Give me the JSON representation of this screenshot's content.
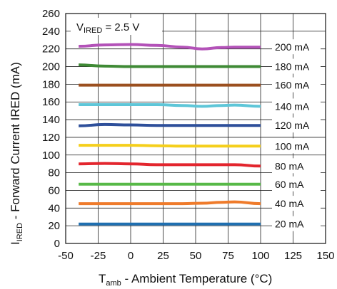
{
  "chart_data": {
    "type": "line",
    "xlabel_main": "T",
    "xlabel_sub": "amb",
    "xlabel_rest": " - Ambient Temperature (°C)",
    "ylabel_main": "I",
    "ylabel_sub": "IRED",
    "ylabel_rest": " - Forward Current IRED (mA)",
    "annotation_main": "V",
    "annotation_sub": "IRED",
    "annotation_rest": " = 2.5 V",
    "xlim": [
      -50,
      150
    ],
    "ylim": [
      0,
      260
    ],
    "x_ticks": [
      "-50",
      "-25",
      "0",
      "25",
      "50",
      "75",
      "100",
      "125",
      "150"
    ],
    "y_ticks": [
      "0",
      "20",
      "40",
      "60",
      "80",
      "100",
      "120",
      "140",
      "160",
      "180",
      "200",
      "220",
      "240",
      "260"
    ],
    "grid": true,
    "x": [
      -40,
      -20,
      0,
      20,
      40,
      55,
      70,
      80,
      100
    ],
    "series": [
      {
        "name": "20 mA",
        "color": "#1f6fb0",
        "values": [
          22,
          22,
          22,
          22,
          22,
          22,
          22,
          22,
          22
        ]
      },
      {
        "name": "40 mA",
        "color": "#ef7b2b",
        "values": [
          45,
          45,
          45,
          45,
          45,
          45.5,
          46.5,
          47,
          45
        ]
      },
      {
        "name": "60 mA",
        "color": "#57b947",
        "values": [
          67,
          67,
          67,
          67,
          67,
          67,
          67,
          67,
          67
        ]
      },
      {
        "name": "80 mA",
        "color": "#e3262e",
        "values": [
          90,
          90.5,
          90,
          89,
          89,
          89,
          89,
          89,
          87.5
        ]
      },
      {
        "name": "100 mA",
        "color": "#f5cf1b",
        "values": [
          111,
          111,
          111,
          110.5,
          110,
          110,
          110,
          110,
          110
        ]
      },
      {
        "name": "120 mA",
        "color": "#2e4f9a",
        "values": [
          133,
          134.5,
          134,
          133.5,
          133.5,
          133.5,
          133.5,
          133.5,
          133.5
        ]
      },
      {
        "name": "140 mA",
        "color": "#5ec6d8",
        "values": [
          157,
          157,
          157,
          157,
          156,
          155,
          156,
          156.5,
          155
        ]
      },
      {
        "name": "160 mA",
        "color": "#9b4f1f",
        "values": [
          179,
          179,
          179,
          179,
          179,
          179,
          179,
          179,
          179
        ]
      },
      {
        "name": "180 mA",
        "color": "#3f8a35",
        "values": [
          202,
          200.5,
          200,
          200,
          200,
          200,
          200,
          200,
          200
        ]
      },
      {
        "name": "200 mA",
        "color": "#b352b8",
        "values": [
          223,
          224.5,
          225,
          224,
          222,
          220,
          221.5,
          222,
          222
        ]
      }
    ]
  }
}
